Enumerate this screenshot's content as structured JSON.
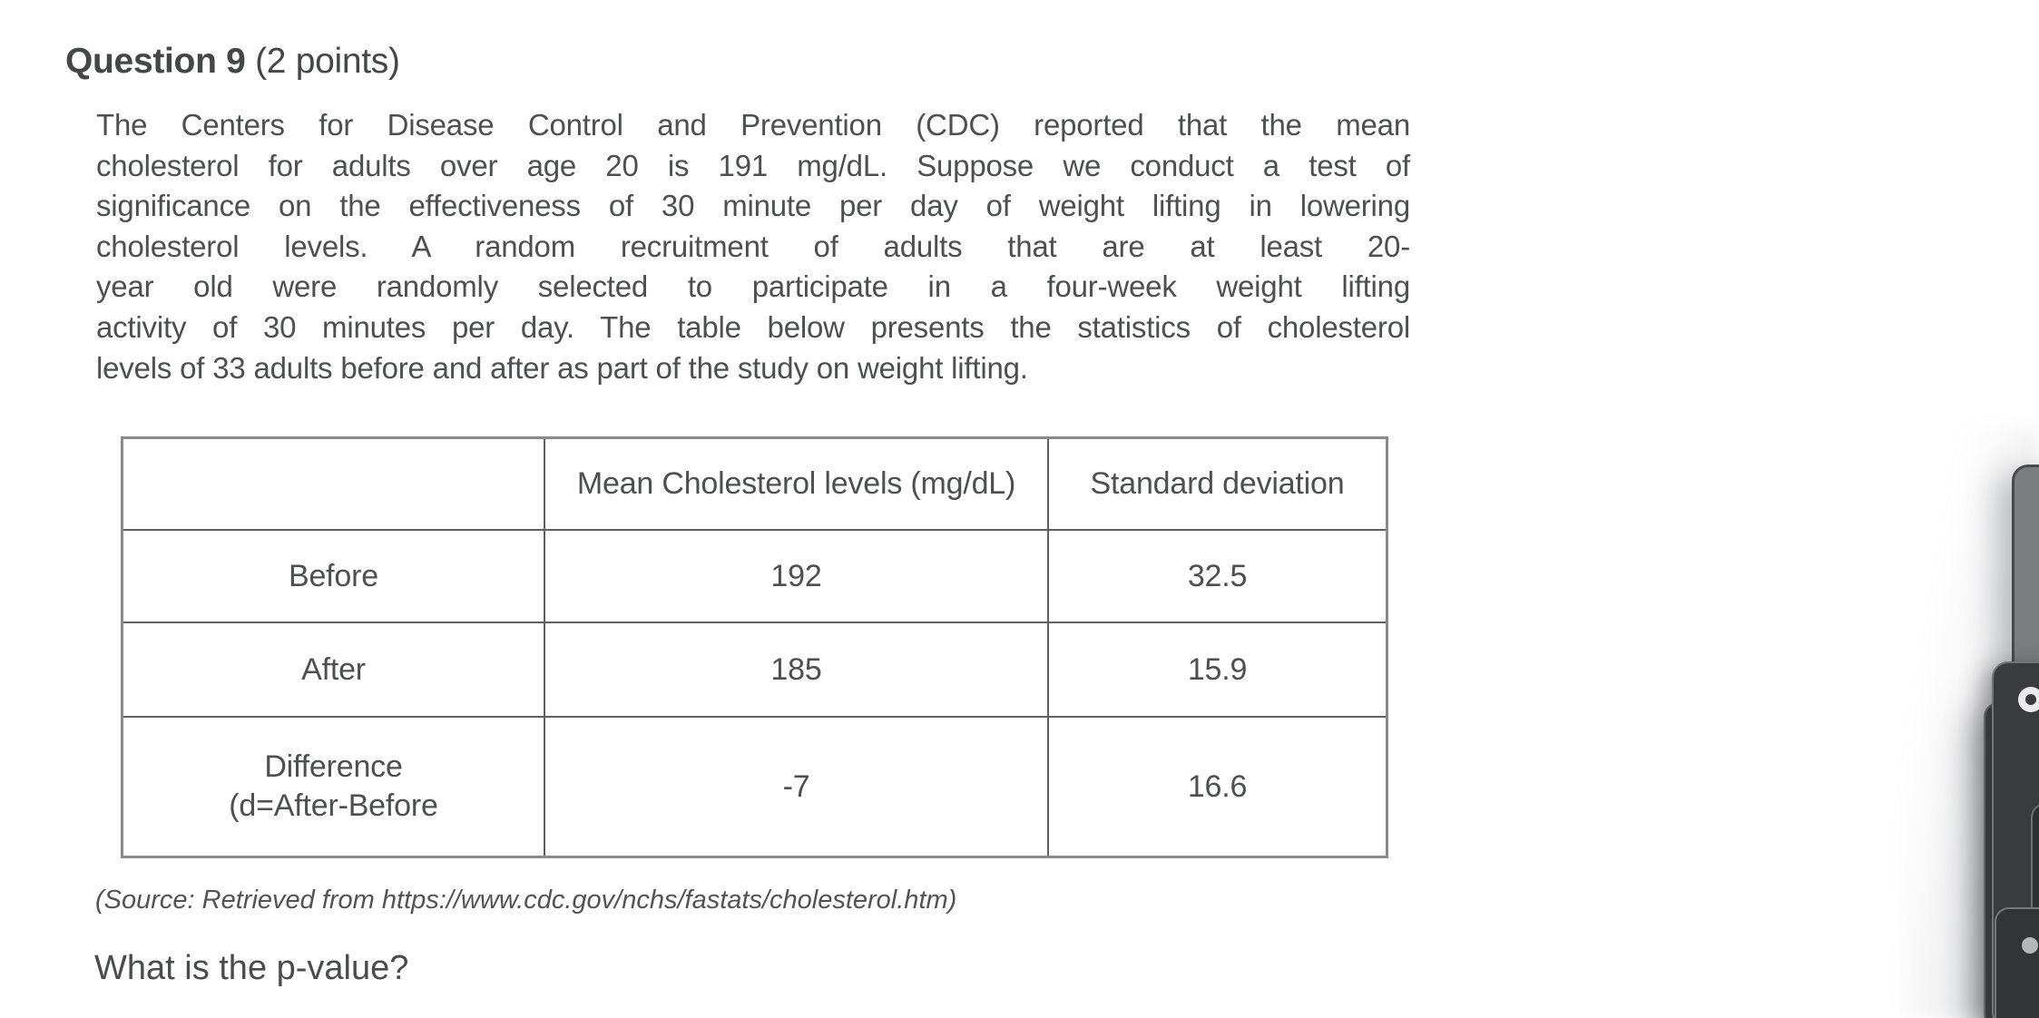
{
  "page": {
    "background": "#ffffff",
    "text_color": "#4e4f51"
  },
  "header": {
    "title_bold": "Question 9",
    "title_suffix": " (2 points)"
  },
  "body": {
    "paragraph_lines": [
      "The Centers for Disease Control and Prevention (CDC) reported that the mean",
      "cholesterol for adults over age 20 is 191 mg/dL. Suppose we conduct a test of",
      "significance on the effectiveness of 30 minute per day of weight lifting in lowering",
      "cholesterol levels. A random recruitment of adults that are at least 20-",
      "year old were randomly selected to participate in a four-week weight lifting",
      "activity of 30 minutes per day. The table below presents the statistics of cholesterol",
      "levels of 33 adults before and after as part of the study on weight lifting."
    ],
    "source_note": "(Source: Retrieved from https://www.cdc.gov/nchs/fastats/cholesterol.htm)",
    "question_prompt": "What is the p-value?"
  },
  "table": {
    "col_headers": [
      "",
      "Mean Cholesterol levels (mg/dL)",
      "Standard deviation"
    ],
    "rows": [
      {
        "label": "Before",
        "mean": "192",
        "sd": "32.5"
      },
      {
        "label": "After",
        "mean": "185",
        "sd": "15.9"
      },
      {
        "label": "Difference",
        "label2": "(d=After-Before",
        "mean": "-7",
        "sd": "16.6"
      }
    ]
  },
  "decoration": {
    "card_gray": "#7c7d7f",
    "card_dark": "#3a3b3e",
    "card_darker": "#333437",
    "camera_dot_light": "#b6b7b9"
  }
}
